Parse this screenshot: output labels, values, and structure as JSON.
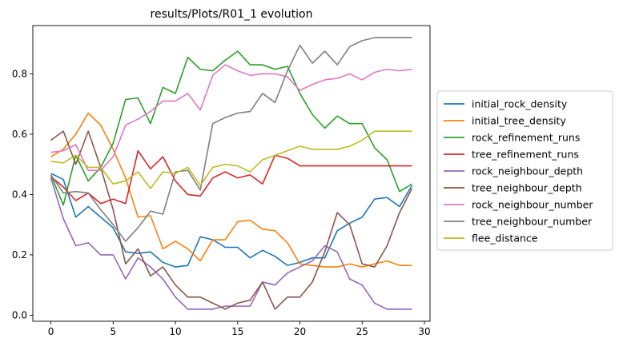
{
  "chart_data": {
    "type": "line",
    "title": "results/Plots/R01_1 evolution",
    "xlabel": "",
    "ylabel": "",
    "xlim": [
      -1.45,
      30.45
    ],
    "ylim": [
      -0.02,
      0.96
    ],
    "xticks": [
      0,
      5,
      10,
      15,
      20,
      25,
      30
    ],
    "yticks": [
      0.0,
      0.2,
      0.4,
      0.6,
      0.8
    ],
    "grid": false,
    "legend_position": "right, outside plot",
    "x": [
      0,
      1,
      2,
      3,
      4,
      5,
      6,
      7,
      8,
      9,
      10,
      11,
      12,
      13,
      14,
      15,
      16,
      17,
      18,
      19,
      20,
      21,
      22,
      23,
      24,
      25,
      26,
      27,
      28,
      29
    ],
    "series": [
      {
        "name": "initial_rock_density",
        "color": "#1f77b4",
        "values": [
          0.47,
          0.45,
          0.325,
          0.36,
          0.325,
          0.29,
          0.21,
          0.205,
          0.21,
          0.175,
          0.16,
          0.165,
          0.26,
          0.25,
          0.225,
          0.225,
          0.19,
          0.215,
          0.195,
          0.165,
          0.175,
          0.19,
          0.19,
          0.28,
          0.305,
          0.325,
          0.385,
          0.39,
          0.36,
          0.43
        ]
      },
      {
        "name": "initial_tree_density",
        "color": "#ff7f0e",
        "values": [
          0.525,
          0.55,
          0.6,
          0.67,
          0.63,
          0.55,
          0.455,
          0.325,
          0.33,
          0.22,
          0.245,
          0.22,
          0.18,
          0.25,
          0.25,
          0.31,
          0.315,
          0.285,
          0.28,
          0.24,
          0.17,
          0.165,
          0.16,
          0.16,
          0.17,
          0.16,
          0.17,
          0.18,
          0.165,
          0.165
        ]
      },
      {
        "name": "rock_refinement_runs",
        "color": "#2ca02c",
        "values": [
          0.465,
          0.365,
          0.53,
          0.445,
          0.49,
          0.57,
          0.715,
          0.72,
          0.635,
          0.755,
          0.735,
          0.855,
          0.815,
          0.81,
          0.845,
          0.875,
          0.83,
          0.83,
          0.815,
          0.825,
          0.735,
          0.665,
          0.62,
          0.66,
          0.635,
          0.635,
          0.555,
          0.515,
          0.41,
          0.435
        ]
      },
      {
        "name": "tree_refinement_runs",
        "color": "#d62728",
        "values": [
          0.46,
          0.425,
          0.38,
          0.405,
          0.37,
          0.385,
          0.37,
          0.545,
          0.485,
          0.525,
          0.445,
          0.4,
          0.395,
          0.455,
          0.475,
          0.455,
          0.465,
          0.435,
          0.53,
          0.52,
          0.495,
          0.495,
          0.495,
          0.495,
          0.495,
          0.495,
          0.495,
          0.495,
          0.495,
          0.495
        ]
      },
      {
        "name": "rock_neighbour_depth",
        "color": "#9467bd",
        "values": [
          0.455,
          0.32,
          0.23,
          0.24,
          0.2,
          0.2,
          0.12,
          0.19,
          0.16,
          0.12,
          0.06,
          0.02,
          0.02,
          0.02,
          0.03,
          0.03,
          0.03,
          0.11,
          0.1,
          0.14,
          0.16,
          0.18,
          0.23,
          0.21,
          0.12,
          0.1,
          0.04,
          0.02,
          0.02,
          0.02
        ]
      },
      {
        "name": "tree_neighbour_depth",
        "color": "#8c564b",
        "values": [
          0.58,
          0.61,
          0.5,
          0.61,
          0.49,
          0.35,
          0.17,
          0.22,
          0.13,
          0.16,
          0.1,
          0.06,
          0.06,
          0.04,
          0.02,
          0.04,
          0.05,
          0.11,
          0.02,
          0.06,
          0.06,
          0.11,
          0.21,
          0.34,
          0.3,
          0.17,
          0.16,
          0.23,
          0.34,
          0.42
        ]
      },
      {
        "name": "rock_neighbour_number",
        "color": "#e377c2",
        "values": [
          0.54,
          0.545,
          0.565,
          0.48,
          0.48,
          0.525,
          0.63,
          0.65,
          0.675,
          0.71,
          0.71,
          0.735,
          0.68,
          0.795,
          0.83,
          0.81,
          0.795,
          0.8,
          0.8,
          0.79,
          0.745,
          0.765,
          0.78,
          0.785,
          0.8,
          0.78,
          0.805,
          0.815,
          0.81,
          0.815
        ]
      },
      {
        "name": "tree_neighbour_number",
        "color": "#7f7f7f",
        "values": [
          0.465,
          0.405,
          0.41,
          0.405,
          0.35,
          0.3,
          0.245,
          0.29,
          0.345,
          0.335,
          0.475,
          0.48,
          0.415,
          0.635,
          0.655,
          0.67,
          0.675,
          0.735,
          0.705,
          0.81,
          0.895,
          0.835,
          0.875,
          0.83,
          0.89,
          0.91,
          0.92,
          0.92,
          0.92,
          0.92
        ]
      },
      {
        "name": "flee_distance",
        "color": "#bcbd22",
        "values": [
          0.51,
          0.505,
          0.53,
          0.49,
          0.49,
          0.435,
          0.445,
          0.475,
          0.42,
          0.475,
          0.47,
          0.49,
          0.43,
          0.49,
          0.5,
          0.495,
          0.475,
          0.515,
          0.53,
          0.545,
          0.56,
          0.55,
          0.55,
          0.55,
          0.56,
          0.58,
          0.61,
          0.61,
          0.61,
          0.61
        ]
      }
    ]
  }
}
